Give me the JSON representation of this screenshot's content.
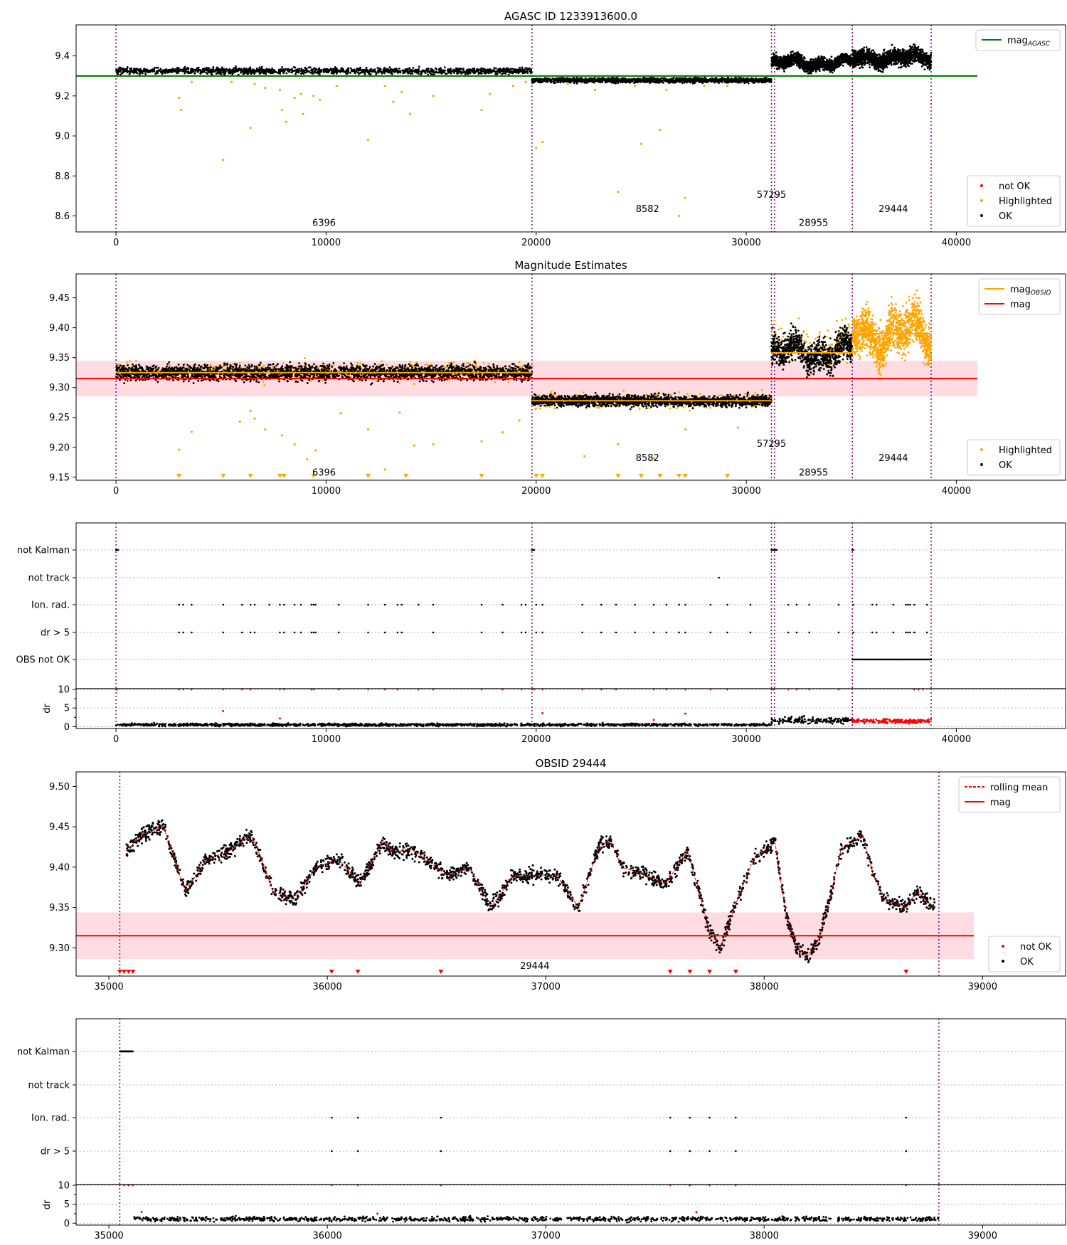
{
  "figure": {
    "title_panel1": "AGASC ID 1233913600.0",
    "title_panel2": "Magnitude Estimates",
    "title_panel4": "OBSID 29444"
  },
  "colors": {
    "ok": "#000000",
    "not_ok": "#ff0000",
    "highlighted": "#ffa500",
    "mag_agasc": "#008000",
    "mag": "#ff0000",
    "mag_obsid": "#ffa500",
    "band": "#ffc0cb",
    "obs_boundary": "#800080",
    "grid": "#b0b0b0"
  },
  "chart_data": [
    {
      "type": "scatter",
      "title": "AGASC ID 1233913600.0",
      "xlim": [
        -1900,
        45200
      ],
      "ylim": [
        8.52,
        9.555
      ],
      "xticks": [
        0,
        10000,
        20000,
        30000,
        40000
      ],
      "yticks": [
        8.6,
        8.8,
        9.0,
        9.2,
        9.4
      ],
      "ytick_labels": [
        "8.6",
        "8.8",
        "9.0",
        "9.2",
        "9.4"
      ],
      "obsid_boundaries": [
        0,
        19800,
        31200,
        31350,
        35050,
        38800
      ],
      "obsid_labels": [
        {
          "text": "6396",
          "x": 9900,
          "y": 8.55
        },
        {
          "text": "8582",
          "x": 25300,
          "y": 8.62
        },
        {
          "text": "57295",
          "x": 31200,
          "y": 8.69
        },
        {
          "text": "28955",
          "x": 33200,
          "y": 8.55
        },
        {
          "text": "29444",
          "x": 37000,
          "y": 8.62
        }
      ],
      "mag_agasc": 9.3,
      "mag_agasc_xrange": [
        -1900,
        41000
      ],
      "segments": [
        {
          "x0": 0,
          "x1": 19800,
          "center": 9.325,
          "spread": 0.015
        },
        {
          "x0": 19800,
          "x1": 31200,
          "center": 9.278,
          "spread": 0.012
        },
        {
          "x0": 31200,
          "x1": 35050,
          "center": 9.365,
          "spread": 0.03
        },
        {
          "x0": 35050,
          "x1": 38800,
          "center": 9.39,
          "spread": 0.04
        }
      ],
      "highlighted_points": [
        {
          "x": 3000,
          "y": 9.19
        },
        {
          "x": 3100,
          "y": 9.13
        },
        {
          "x": 3600,
          "y": 9.27
        },
        {
          "x": 5100,
          "y": 8.88
        },
        {
          "x": 5500,
          "y": 9.27
        },
        {
          "x": 6400,
          "y": 9.04
        },
        {
          "x": 6600,
          "y": 9.26
        },
        {
          "x": 7100,
          "y": 9.24
        },
        {
          "x": 7800,
          "y": 9.23
        },
        {
          "x": 7900,
          "y": 9.13
        },
        {
          "x": 8100,
          "y": 9.07
        },
        {
          "x": 8500,
          "y": 9.19
        },
        {
          "x": 8800,
          "y": 9.21
        },
        {
          "x": 8900,
          "y": 9.11
        },
        {
          "x": 9400,
          "y": 9.2
        },
        {
          "x": 9700,
          "y": 9.18
        },
        {
          "x": 10500,
          "y": 9.25
        },
        {
          "x": 12000,
          "y": 8.98
        },
        {
          "x": 12800,
          "y": 9.25
        },
        {
          "x": 13200,
          "y": 9.17
        },
        {
          "x": 13600,
          "y": 9.22
        },
        {
          "x": 14000,
          "y": 9.11
        },
        {
          "x": 15100,
          "y": 9.2
        },
        {
          "x": 17400,
          "y": 9.13
        },
        {
          "x": 17800,
          "y": 9.21
        },
        {
          "x": 18900,
          "y": 9.25
        },
        {
          "x": 19500,
          "y": 9.27
        },
        {
          "x": 20000,
          "y": 8.94
        },
        {
          "x": 20300,
          "y": 8.97
        },
        {
          "x": 21500,
          "y": 9.26
        },
        {
          "x": 22800,
          "y": 9.23
        },
        {
          "x": 23900,
          "y": 8.72
        },
        {
          "x": 24700,
          "y": 9.25
        },
        {
          "x": 25000,
          "y": 8.96
        },
        {
          "x": 25900,
          "y": 9.03
        },
        {
          "x": 26200,
          "y": 9.23
        },
        {
          "x": 26800,
          "y": 8.6
        },
        {
          "x": 27100,
          "y": 8.69
        },
        {
          "x": 28000,
          "y": 9.25
        },
        {
          "x": 29100,
          "y": 9.25
        }
      ],
      "legend": [
        "not OK",
        "Highlighted",
        "OK"
      ],
      "legend_line": "mag_AGASC"
    },
    {
      "type": "scatter",
      "title": "Magnitude Estimates",
      "xlim": [
        -1900,
        45200
      ],
      "ylim": [
        9.145,
        9.49
      ],
      "xticks": [
        0,
        10000,
        20000,
        30000,
        40000
      ],
      "yticks": [
        9.15,
        9.2,
        9.25,
        9.3,
        9.35,
        9.4,
        9.45
      ],
      "ytick_labels": [
        "9.15",
        "9.20",
        "9.25",
        "9.30",
        "9.35",
        "9.40",
        "9.45"
      ],
      "obsid_boundaries": [
        0,
        19800,
        31200,
        31350,
        35050,
        38800
      ],
      "obsid_labels": [
        {
          "text": "6396",
          "x": 9900,
          "y": 9.153
        },
        {
          "text": "8582",
          "x": 25300,
          "y": 9.177
        },
        {
          "text": "57295",
          "x": 31200,
          "y": 9.201
        },
        {
          "text": "28955",
          "x": 33200,
          "y": 9.153
        },
        {
          "text": "29444",
          "x": 37000,
          "y": 9.177
        }
      ],
      "mag": 9.315,
      "mag_band": [
        9.285,
        9.345
      ],
      "mag_xrange": [
        -1900,
        41000
      ],
      "mag_obsid": [
        {
          "x0": 0,
          "x1": 19800,
          "y": 9.325
        },
        {
          "x0": 19800,
          "x1": 31200,
          "y": 9.278
        },
        {
          "x0": 31200,
          "x1": 35050,
          "y": 9.358
        },
        {
          "x0": 35050,
          "x1": 38800,
          "y": 9.39
        }
      ],
      "highlighted_points": [
        {
          "x": 3000,
          "y": 9.196
        },
        {
          "x": 3600,
          "y": 9.226
        },
        {
          "x": 5900,
          "y": 9.243
        },
        {
          "x": 6400,
          "y": 9.261
        },
        {
          "x": 6600,
          "y": 9.248
        },
        {
          "x": 7100,
          "y": 9.23
        },
        {
          "x": 7900,
          "y": 9.22
        },
        {
          "x": 8500,
          "y": 9.205
        },
        {
          "x": 9100,
          "y": 9.18
        },
        {
          "x": 9500,
          "y": 9.195
        },
        {
          "x": 10700,
          "y": 9.257
        },
        {
          "x": 12000,
          "y": 9.23
        },
        {
          "x": 12800,
          "y": 9.163
        },
        {
          "x": 13500,
          "y": 9.258
        },
        {
          "x": 14200,
          "y": 9.203
        },
        {
          "x": 15100,
          "y": 9.205
        },
        {
          "x": 17400,
          "y": 9.21
        },
        {
          "x": 18400,
          "y": 9.225
        },
        {
          "x": 19200,
          "y": 9.245
        },
        {
          "x": 22300,
          "y": 9.185
        },
        {
          "x": 23900,
          "y": 9.205
        },
        {
          "x": 25600,
          "y": 9.182
        },
        {
          "x": 27100,
          "y": 9.23
        },
        {
          "x": 29600,
          "y": 9.233
        }
      ],
      "below_markers_x": [
        3000,
        5100,
        6400,
        7800,
        8000,
        9400,
        12000,
        13800,
        17400,
        20000,
        20300,
        23900,
        25000,
        25900,
        26800,
        27100,
        29100
      ],
      "legend": [
        "Highlighted",
        "OK"
      ],
      "legend_lines": [
        "mag_OBSID",
        "mag"
      ]
    },
    {
      "type": "scatter",
      "title": "",
      "categories": [
        "not Kalman",
        "not track",
        "Ion. rad.",
        "dr > 5",
        "OBS not OK"
      ],
      "xlim": [
        -1900,
        45200
      ],
      "xticks": [
        0,
        10000,
        20000,
        30000,
        40000
      ],
      "obsid_boundaries": [
        0,
        19800,
        31200,
        31350,
        35050,
        38800
      ],
      "flags": {
        "not Kalman": [
          0,
          50,
          100,
          19800,
          19850,
          19900,
          31200,
          31250,
          31300,
          31350,
          31400,
          31450,
          35050,
          35100
        ],
        "not track": [
          28700
        ],
        "Ion. rad.": [
          3000,
          3200,
          3600,
          5100,
          6000,
          6400,
          6600,
          7300,
          7800,
          8000,
          8500,
          8800,
          9300,
          9400,
          9500,
          10600,
          12000,
          12800,
          13400,
          13600,
          14400,
          15100,
          17400,
          18400,
          19300,
          19500,
          20000,
          20300,
          22200,
          23100,
          23800,
          24700,
          25600,
          26200,
          26800,
          27100,
          28300,
          29100,
          30200,
          32000,
          32400,
          33000,
          34400,
          35100,
          36000,
          36200,
          37000,
          37600,
          37700,
          37800,
          38000,
          38600
        ],
        "dr > 5": [
          3000,
          3200,
          3600,
          5100,
          6000,
          6400,
          6600,
          7800,
          8000,
          8500,
          8800,
          9300,
          9400,
          9500,
          10600,
          12000,
          12800,
          13400,
          13600,
          15100,
          17400,
          18400,
          19300,
          19500,
          20000,
          20300,
          22200,
          23100,
          23800,
          24700,
          25600,
          26200,
          26800,
          27100,
          28300,
          29100,
          30200,
          32000,
          32400,
          33000,
          34400,
          35100,
          36000,
          36200,
          37000,
          37600,
          37700,
          37800,
          38000,
          38600
        ],
        "OBS not OK": {
          "from": 35050,
          "to": 38800
        }
      }
    },
    {
      "type": "scatter",
      "title": "",
      "ylabel": "dr",
      "xlim": [
        -1900,
        45200
      ],
      "ylim": [
        -0.5,
        10.2
      ],
      "yticks": [
        0,
        5,
        10
      ],
      "ytick_labels": [
        "0",
        "5",
        "10"
      ],
      "xticks": [
        0,
        10000,
        20000,
        30000,
        40000
      ],
      "xtick_labels": [
        "0",
        "10000",
        "20000",
        "30000",
        "40000"
      ],
      "obsid_boundaries": [
        0,
        19800,
        31200,
        31350,
        35050,
        38800
      ],
      "segments": [
        {
          "x0": 0,
          "x1": 31200,
          "center": 0.5,
          "spread": 0.35,
          "status": "OK"
        },
        {
          "x0": 31200,
          "x1": 35050,
          "center": 1.7,
          "spread": 0.8,
          "status": "OK"
        },
        {
          "x0": 35050,
          "x1": 38800,
          "center": 1.5,
          "spread": 0.6,
          "status": "not OK"
        }
      ],
      "clipped_at_10_x": [
        0,
        50,
        3000,
        3200,
        3600,
        5100,
        6000,
        6400,
        7800,
        8000,
        9300,
        9400,
        10600,
        12000,
        12800,
        13400,
        14400,
        15100,
        17400,
        18400,
        19300,
        19800,
        19900,
        20300,
        22200,
        23100,
        23800,
        25600,
        26200,
        27100,
        28300,
        29100,
        31200,
        31300,
        32000,
        32400,
        33000,
        34400,
        38000,
        38200,
        38400
      ],
      "outliers": [
        {
          "x": 5100,
          "y": 4.2
        },
        {
          "x": 7800,
          "y": 2.2
        },
        {
          "x": 25600,
          "y": 1.8
        },
        {
          "x": 20300,
          "y": 3.6
        },
        {
          "x": 27100,
          "y": 3.5
        }
      ]
    },
    {
      "type": "scatter",
      "title": "OBSID 29444",
      "xlim": [
        34850,
        39380
      ],
      "ylim": [
        9.265,
        9.518
      ],
      "xticks": [
        35000,
        36000,
        37000,
        38000,
        39000
      ],
      "xtick_labels": [
        "35000",
        "36000",
        "37000",
        "38000",
        "39000"
      ],
      "yticks": [
        9.3,
        9.35,
        9.4,
        9.45,
        9.5
      ],
      "ytick_labels": [
        "9.30",
        "9.35",
        "9.40",
        "9.45",
        "9.50"
      ],
      "obsid_boundaries": [
        35050,
        38800
      ],
      "obsid_labels": [
        {
          "text": "29444",
          "x": 36950,
          "y": 9.274
        }
      ],
      "mag": 9.315,
      "mag_band": [
        9.286,
        9.344
      ],
      "mag_xrange": [
        34850,
        38960
      ],
      "rolling_mean": {
        "x": [
          35080,
          35150,
          35250,
          35350,
          35450,
          35550,
          35650,
          35700,
          35750,
          35850,
          35950,
          36050,
          36150,
          36250,
          36300,
          36400,
          36500,
          36550,
          36650,
          36750,
          36850,
          36950,
          37050,
          37150,
          37250,
          37300,
          37350,
          37450,
          37550,
          37600,
          37650,
          37700,
          37750,
          37800,
          37850,
          37950,
          38050,
          38100,
          38150,
          38200,
          38250,
          38300,
          38350,
          38450,
          38500,
          38550,
          38650,
          38700,
          38780
        ],
        "y": [
          9.42,
          9.44,
          9.45,
          9.37,
          9.41,
          9.42,
          9.44,
          9.41,
          9.37,
          9.36,
          9.4,
          9.41,
          9.38,
          9.43,
          9.42,
          9.42,
          9.4,
          9.39,
          9.4,
          9.35,
          9.39,
          9.39,
          9.39,
          9.35,
          9.43,
          9.43,
          9.4,
          9.39,
          9.38,
          9.4,
          9.42,
          9.37,
          9.32,
          9.3,
          9.34,
          9.41,
          9.43,
          9.34,
          9.3,
          9.29,
          9.31,
          9.36,
          9.42,
          9.44,
          9.39,
          9.36,
          9.35,
          9.37,
          9.35
        ]
      },
      "below_markers_x": [
        35050,
        35070,
        35090,
        35110,
        36020,
        36140,
        36520,
        37570,
        37660,
        37750,
        37870,
        38650
      ],
      "legend": [
        "rolling mean",
        "mag",
        "not OK",
        "OK"
      ]
    },
    {
      "type": "scatter",
      "title": "",
      "categories": [
        "not Kalman",
        "not track",
        "Ion. rad.",
        "dr > 5"
      ],
      "xlim": [
        34850,
        39380
      ],
      "obsid_boundaries": [
        35050,
        38800
      ],
      "flags": {
        "not Kalman": {
          "from": 35050,
          "to": 35110
        },
        "not track": [],
        "Ion. rad.": [
          36020,
          36140,
          36520,
          37570,
          37660,
          37750,
          37870,
          38650
        ],
        "dr > 5": [
          36020,
          36140,
          36520,
          37570,
          37660,
          37750,
          37870,
          38650
        ]
      }
    },
    {
      "type": "scatter",
      "title": "",
      "ylabel": "dr",
      "xlim": [
        34850,
        39380
      ],
      "ylim": [
        -0.5,
        10.2
      ],
      "yticks": [
        0,
        5,
        10
      ],
      "ytick_labels": [
        "0",
        "5",
        "10"
      ],
      "xticks": [
        35000,
        36000,
        37000,
        38000,
        39000
      ],
      "xtick_labels": [
        "35000",
        "36000",
        "37000",
        "38000",
        "39000"
      ],
      "obsid_boundaries": [
        35050,
        38800
      ],
      "clipped_at_10_x": [
        35050,
        35070,
        35090,
        35110,
        36020,
        36140,
        36520,
        37570,
        37660,
        37750,
        37870,
        38650
      ],
      "segments": [
        {
          "x0": 35110,
          "x1": 38800,
          "center": 1.1,
          "spread": 0.6,
          "status": "OK"
        }
      ],
      "outliers": [
        {
          "x": 35150,
          "y": 3.0
        },
        {
          "x": 36230,
          "y": 2.5
        },
        {
          "x": 37690,
          "y": 2.9
        }
      ]
    }
  ]
}
